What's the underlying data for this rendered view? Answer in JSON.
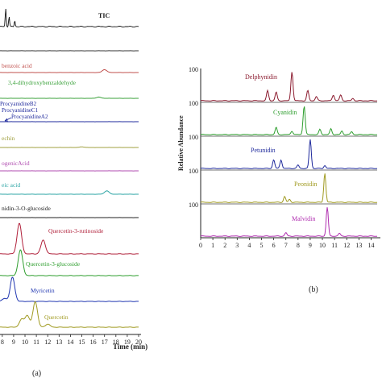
{
  "chart_data": [
    {
      "type": "line",
      "panel_label": "(a)",
      "xlabel": "Time (min)",
      "x_ticks": [
        "8",
        "9",
        "10",
        "11",
        "12",
        "13",
        "14",
        "15",
        "16",
        "17",
        "18",
        "19",
        "20"
      ],
      "xlim": [
        7.8,
        20
      ],
      "trace_order_top_to_bottom": [
        "TIC",
        "",
        "benzoic acid",
        "3,4-dihydroxybenzaldehyde",
        "ProcyanidineB2 / ProcyanidineC1 / ProcyanidineA2",
        "echin",
        "ogenicAcid",
        "eic acid",
        "nidin-3-O-glucoside",
        "Quercetin-3-rutinoside",
        "Quercetin-3-glucoside",
        "Myricetin",
        "Quercetin"
      ],
      "series": [
        {
          "name": "TIC",
          "color": "#111111",
          "peaks": [
            {
              "x": 8.3,
              "h": 0.9
            },
            {
              "x": 8.6,
              "h": 0.5
            },
            {
              "x": 9.1,
              "h": 0.3
            }
          ]
        },
        {
          "name": "",
          "color": "#333333",
          "peaks": []
        },
        {
          "name": "benzoic acid",
          "color": "#c0504d",
          "peaks": [
            {
              "x": 17.0,
              "h": 0.3
            }
          ]
        },
        {
          "name": "3,4-dihydroxybenzaldehyde",
          "color": "#3aa13a",
          "peaks": [
            {
              "x": 16.5,
              "h": 0.15
            }
          ]
        },
        {
          "name": "ProcyanidineB2 / ProcyanidineC1 / ProcyanidineA2",
          "color": "#1f2a9c",
          "peaks": []
        },
        {
          "name": "echin",
          "color": "#a0a040",
          "peaks": [
            {
              "x": 15.0,
              "h": 0.1
            }
          ]
        },
        {
          "name": "ogenicAcid",
          "color": "#b04db0",
          "peaks": []
        },
        {
          "name": "eic acid",
          "color": "#2fa6a6",
          "peaks": [
            {
              "x": 17.2,
              "h": 0.35
            }
          ]
        },
        {
          "name": "nidin-3-O-glucoside",
          "color": "#222222",
          "peaks": []
        },
        {
          "name": "Quercetin-3-rutinoside",
          "color": "#b0203a",
          "peaks": [
            {
              "x": 9.5,
              "h": 1.0
            },
            {
              "x": 11.6,
              "h": 0.45
            }
          ]
        },
        {
          "name": "Quercetin-3-glucoside",
          "color": "#2e9e2e",
          "peaks": [
            {
              "x": 9.6,
              "h": 1.0
            }
          ]
        },
        {
          "name": "Myricetin",
          "color": "#1f35b0",
          "peaks": [
            {
              "x": 8.9,
              "h": 1.0
            },
            {
              "x": 8.2,
              "h": 0.12
            }
          ]
        },
        {
          "name": "Quercetin",
          "color": "#a09a20",
          "peaks": [
            {
              "x": 10.9,
              "h": 1.0
            },
            {
              "x": 10.2,
              "h": 0.45
            },
            {
              "x": 9.7,
              "h": 0.3
            },
            {
              "x": 12.0,
              "h": 0.12
            }
          ]
        }
      ]
    },
    {
      "type": "line",
      "panel_label": "(b)",
      "ylabel": "Relative Abundance",
      "x_ticks": [
        "0",
        "1",
        "2",
        "3",
        "4",
        "5",
        "6",
        "7",
        "8",
        "9",
        "10",
        "11",
        "12",
        "13",
        "14"
      ],
      "xlim": [
        0,
        14.5
      ],
      "y_max_label": "100",
      "series": [
        {
          "name": "Delphynidin",
          "color": "#8b1a2e",
          "peaks": [
            {
              "x": 7.5,
              "h": 1.0
            },
            {
              "x": 5.5,
              "h": 0.35
            },
            {
              "x": 6.2,
              "h": 0.3
            },
            {
              "x": 8.8,
              "h": 0.35
            },
            {
              "x": 9.5,
              "h": 0.15
            },
            {
              "x": 10.9,
              "h": 0.2
            },
            {
              "x": 11.5,
              "h": 0.2
            },
            {
              "x": 12.5,
              "h": 0.08
            }
          ]
        },
        {
          "name": "Cyanidin",
          "color": "#2e9e2e",
          "peaks": [
            {
              "x": 8.5,
              "h": 1.0
            },
            {
              "x": 6.2,
              "h": 0.25
            },
            {
              "x": 7.5,
              "h": 0.12
            },
            {
              "x": 9.8,
              "h": 0.18
            },
            {
              "x": 10.7,
              "h": 0.2
            },
            {
              "x": 11.6,
              "h": 0.12
            },
            {
              "x": 12.4,
              "h": 0.1
            }
          ]
        },
        {
          "name": "Petunidin",
          "color": "#1f2a9c",
          "peaks": [
            {
              "x": 9.0,
              "h": 1.0
            },
            {
              "x": 6.0,
              "h": 0.3
            },
            {
              "x": 6.6,
              "h": 0.3
            },
            {
              "x": 8.0,
              "h": 0.12
            },
            {
              "x": 10.2,
              "h": 0.1
            }
          ]
        },
        {
          "name": "Peonidin",
          "color": "#a09a20",
          "peaks": [
            {
              "x": 10.2,
              "h": 1.0
            },
            {
              "x": 6.9,
              "h": 0.2
            },
            {
              "x": 7.3,
              "h": 0.1
            }
          ]
        },
        {
          "name": "Malvidin",
          "color": "#b02fb0",
          "peaks": [
            {
              "x": 10.4,
              "h": 1.0
            },
            {
              "x": 7.0,
              "h": 0.12
            },
            {
              "x": 11.4,
              "h": 0.1
            }
          ]
        }
      ]
    }
  ]
}
